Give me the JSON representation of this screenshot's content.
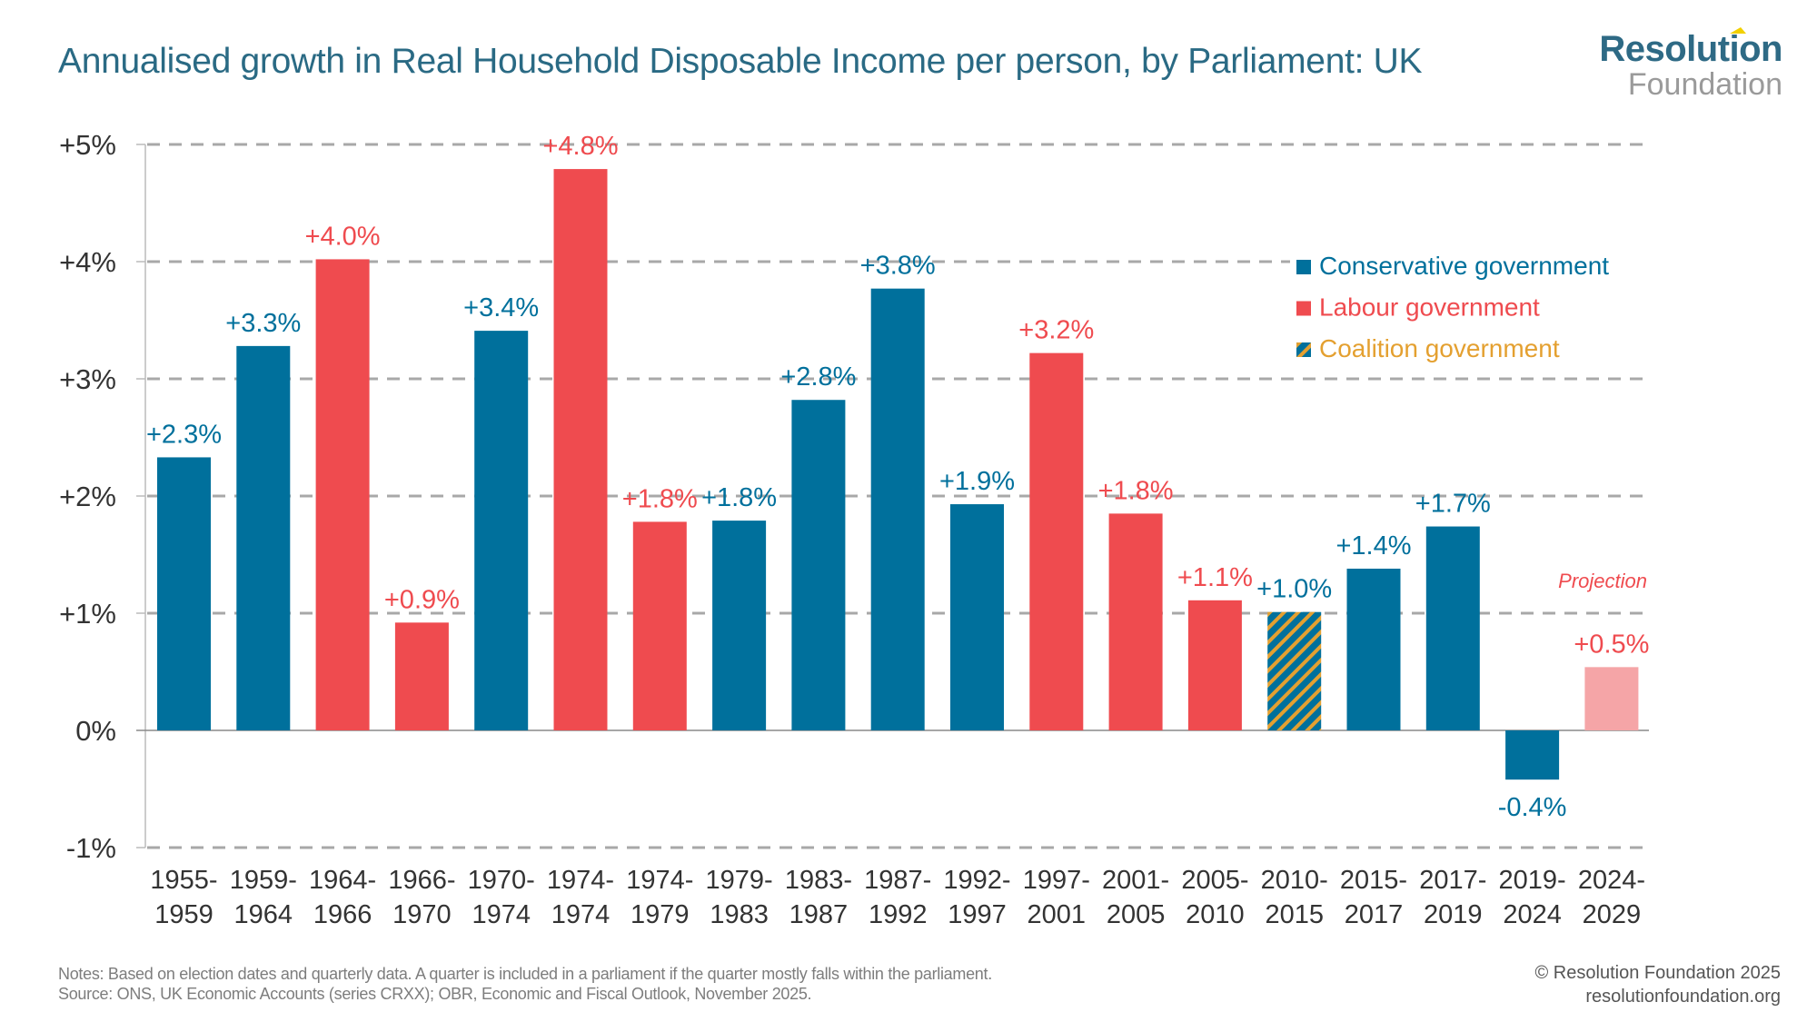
{
  "header": {
    "title": "Annualised growth in Real Household Disposable Income per person, by Parliament: UK",
    "logo_top": "Resolution",
    "logo_bottom": "Foundation"
  },
  "colors": {
    "conservative": "#00709c",
    "labour": "#ef4b4f",
    "coalition_stripe": "#e4a030",
    "projection": "#f5a5a7",
    "title": "#2a6a84"
  },
  "chart_data": {
    "type": "bar",
    "title": "Annualised growth in Real Household Disposable Income per person, by Parliament: UK",
    "xlabel": "",
    "ylabel": "",
    "ylim": [
      -1,
      5
    ],
    "yticks": [
      5,
      4,
      3,
      2,
      1,
      0,
      -1
    ],
    "ytick_labels": [
      "+5%",
      "+4%",
      "+3%",
      "+2%",
      "+1%",
      "0%",
      "-1%"
    ],
    "grid": true,
    "legend_position": "top-right",
    "categories": [
      [
        "1955-",
        "1959"
      ],
      [
        "1959-",
        "1964"
      ],
      [
        "1964-",
        "1966"
      ],
      [
        "1966-",
        "1970"
      ],
      [
        "1970-",
        "1974"
      ],
      [
        "1974-",
        "1974"
      ],
      [
        "1974-",
        "1979"
      ],
      [
        "1979-",
        "1983"
      ],
      [
        "1983-",
        "1987"
      ],
      [
        "1987-",
        "1992"
      ],
      [
        "1992-",
        "1997"
      ],
      [
        "1997-",
        "2001"
      ],
      [
        "2001-",
        "2005"
      ],
      [
        "2005-",
        "2010"
      ],
      [
        "2010-",
        "2015"
      ],
      [
        "2015-",
        "2017"
      ],
      [
        "2017-",
        "2019"
      ],
      [
        "2019-",
        "2024"
      ],
      [
        "2024-",
        "2029"
      ]
    ],
    "values": [
      2.33,
      3.28,
      4.02,
      0.92,
      3.41,
      4.79,
      1.78,
      1.79,
      2.82,
      3.77,
      1.93,
      3.22,
      1.85,
      1.11,
      1.01,
      1.38,
      1.74,
      -0.42,
      0.54
    ],
    "labels": [
      "+2.3%",
      "+3.3%",
      "+4.0%",
      "+0.9%",
      "+3.4%",
      "+4.8%",
      "+1.8%",
      "+1.8%",
      "+2.8%",
      "+3.8%",
      "+1.9%",
      "+3.2%",
      "+1.8%",
      "+1.1%",
      "+1.0%",
      "+1.4%",
      "+1.7%",
      "-0.4%",
      "+0.5%"
    ],
    "government": [
      "conservative",
      "conservative",
      "labour",
      "labour",
      "conservative",
      "labour",
      "labour",
      "conservative",
      "conservative",
      "conservative",
      "conservative",
      "labour",
      "labour",
      "labour",
      "coalition",
      "conservative",
      "conservative",
      "conservative",
      "projection"
    ],
    "legend": [
      {
        "key": "conservative",
        "label": "Conservative government"
      },
      {
        "key": "labour",
        "label": "Labour government"
      },
      {
        "key": "coalition",
        "label": "Coalition government"
      }
    ],
    "annotation": "Projection"
  },
  "footer": {
    "notes": "Notes: Based on election dates and quarterly data. A quarter is included in a parliament if the quarter mostly falls within the parliament.",
    "source": "Source: ONS, UK Economic Accounts (series CRXX); OBR, Economic and Fiscal Outlook, November 2025.",
    "copyright": "© Resolution Foundation 2025",
    "website": "resolutionfoundation.org"
  }
}
